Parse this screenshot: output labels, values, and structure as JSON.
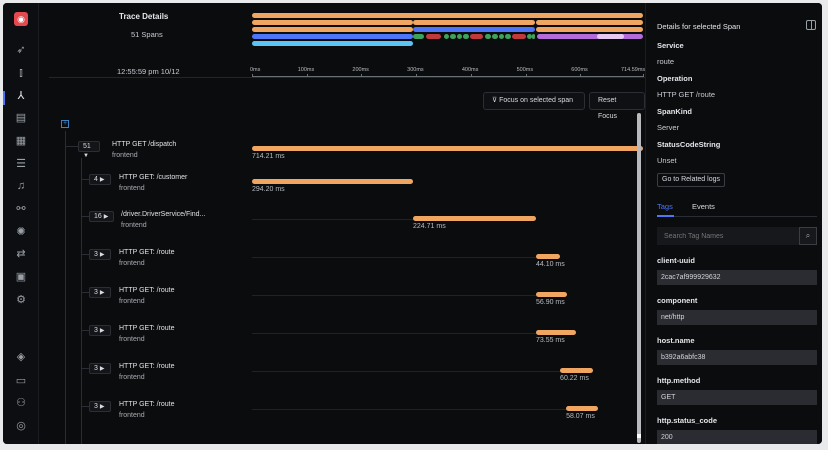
{
  "sidebar": {
    "icons": [
      "rocket-icon",
      "bar-chart-icon",
      "traces-icon",
      "logs-icon",
      "dashboard-icon",
      "list-icon",
      "alerts-icon",
      "integrations-icon",
      "bug-icon",
      "pipeline-icon",
      "billing-icon",
      "settings-icon",
      "layers-icon",
      "chat-icon",
      "invite-user-icon",
      "account-icon"
    ]
  },
  "header": {
    "title": "Trace Details",
    "span_count": "51 Spans",
    "timestamp": "12:55:59 pm 10/12"
  },
  "timeline": {
    "max_ms": 714.59,
    "ticks": [
      "0ms",
      "100ms",
      "200ms",
      "300ms",
      "400ms",
      "500ms",
      "600ms",
      "714.59ms"
    ]
  },
  "toolbar": {
    "focus_label": "Focus on selected span",
    "reset_label": "Reset Focus"
  },
  "colors": {
    "frontend": "#f0a661",
    "customer": "#4e74f8",
    "mysql": "#5bc4f5",
    "redis_ok": "#3fa25a",
    "redis_err": "#c0393b",
    "route": "#b26bd9"
  },
  "spans": [
    {
      "count": "51",
      "expanded": true,
      "name": "HTTP GET /dispatch",
      "service": "frontend",
      "start": 0,
      "duration": 714.21,
      "duration_label": "714.21 ms",
      "depth": 0
    },
    {
      "count": "4",
      "name": "HTTP GET: /customer",
      "service": "frontend",
      "start": 0,
      "duration": 294.2,
      "duration_label": "294.20 ms",
      "depth": 1
    },
    {
      "count": "16",
      "name": "/driver.DriverService/Find...",
      "service": "frontend",
      "start": 294.3,
      "duration": 224.71,
      "duration_label": "224.71 ms",
      "depth": 1
    },
    {
      "count": "3",
      "name": "HTTP GET: /route",
      "service": "frontend",
      "start": 519,
      "duration": 44.1,
      "duration_label": "44.10 ms",
      "depth": 1
    },
    {
      "count": "3",
      "name": "HTTP GET: /route",
      "service": "frontend",
      "start": 519,
      "duration": 56.9,
      "duration_label": "56.90 ms",
      "depth": 1
    },
    {
      "count": "3",
      "name": "HTTP GET: /route",
      "service": "frontend",
      "start": 519,
      "duration": 73.55,
      "duration_label": "73.55 ms",
      "depth": 1
    },
    {
      "count": "3",
      "name": "HTTP GET: /route",
      "service": "frontend",
      "start": 563,
      "duration": 60.22,
      "duration_label": "60.22 ms",
      "depth": 1
    },
    {
      "count": "3",
      "name": "HTTP GET: /route",
      "service": "frontend",
      "start": 574,
      "duration": 58.07,
      "duration_label": "58.07 ms",
      "depth": 1
    }
  ],
  "details": {
    "title": "Details for selected Span",
    "fields": [
      {
        "label": "Service",
        "value": "route"
      },
      {
        "label": "Operation",
        "value": "HTTP GET /route"
      },
      {
        "label": "SpanKind",
        "value": "Server"
      },
      {
        "label": "StatusCodeString",
        "value": "Unset"
      }
    ],
    "related_logs_label": "Go to Related logs",
    "tabs": [
      "Tags",
      "Events"
    ],
    "search_placeholder": "Search Tag Names",
    "tags": [
      {
        "key": "client-uuid",
        "value": "2cac7af999929632"
      },
      {
        "key": "component",
        "value": "net/http"
      },
      {
        "key": "host.name",
        "value": "b392a6abfc38"
      },
      {
        "key": "http.method",
        "value": "GET"
      },
      {
        "key": "http.status_code",
        "value": "200"
      }
    ]
  }
}
